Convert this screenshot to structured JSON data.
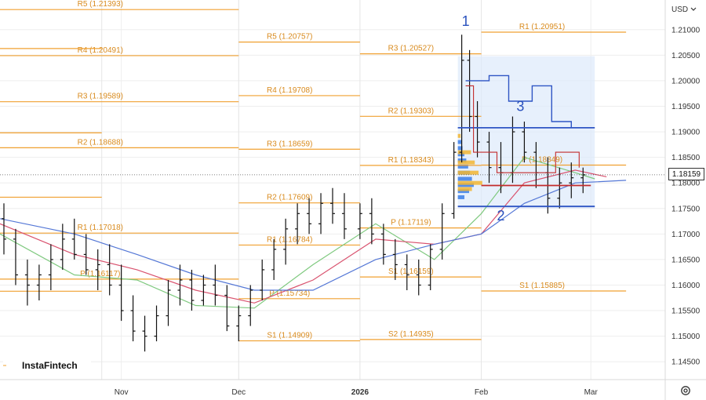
{
  "currency_selector": {
    "label": "USD",
    "icon": "chevron-down-icon"
  },
  "settings": {
    "icon": "gear-icon"
  },
  "watermark": "InstaFintech",
  "last_price": "1.18159",
  "annotations": {
    "wave_1": "1",
    "wave_2": "2",
    "wave_3": "3"
  },
  "colors": {
    "pivot": "#f0a030",
    "pivot_text": "#d98b1e",
    "bars": "#111111",
    "ma_fast": "#7fc97f",
    "ma_mid": "#d9536f",
    "ma_slow": "#5477d6",
    "annotation": "#2a52be",
    "box_fill": "#dde9fb",
    "level_blue": "#2f55c4",
    "level_red": "#c22b2b",
    "profile": "#f2b632",
    "profile_blue": "#3a7ee8"
  },
  "chart_data": {
    "type": "ohlc",
    "instrument_currency": "USD",
    "y_range": [
      1.1415,
      1.2158
    ],
    "y_ticks": [
      "1.21000",
      "1.20500",
      "1.20000",
      "1.19500",
      "1.19000",
      "1.18500",
      "1.18000",
      "1.17500",
      "1.17000",
      "1.16500",
      "1.16000",
      "1.15500",
      "1.15000",
      "1.14500"
    ],
    "x_ticks": [
      {
        "label": "Nov",
        "date": "2025-11-01"
      },
      {
        "label": "Dec",
        "date": "2025-12-01"
      },
      {
        "label": "2026",
        "date": "2026-01-01"
      },
      {
        "label": "Feb",
        "date": "2026-02-01"
      },
      {
        "label": "Mar",
        "date": "2026-03-01"
      }
    ],
    "x_range": [
      "2025-10-01",
      "2026-03-20"
    ],
    "grid": true,
    "current_price": 1.18159,
    "pivot_levels": [
      {
        "label": "R5 (1.21393)",
        "value": 1.21393,
        "from": "2025-10-01",
        "to": "2025-12-01"
      },
      {
        "label": "R4 (1.20491)",
        "value": 1.20491,
        "from": "2025-10-01",
        "to": "2025-12-01"
      },
      {
        "label": "R3 (1.19589)",
        "value": 1.19589,
        "from": "2025-10-01",
        "to": "2025-12-01"
      },
      {
        "label": "R2 (1.18688)",
        "value": 1.18688,
        "from": "2025-10-01",
        "to": "2025-12-01"
      },
      {
        "label": "R1 (1.17018)",
        "value": 1.17018,
        "from": "2025-10-01",
        "to": "2025-12-01"
      },
      {
        "label": "P (1.16117)",
        "value": 1.16117,
        "from": "2025-10-01",
        "to": "2025-12-01"
      },
      {
        "label": "",
        "value": 1.2063,
        "from": "2025-10-01",
        "to": "2025-10-27"
      },
      {
        "label": "",
        "value": 1.1898,
        "from": "2025-10-01",
        "to": "2025-10-27"
      },
      {
        "label": "",
        "value": 1.1772,
        "from": "2025-10-01",
        "to": "2025-10-27"
      },
      {
        "label": "",
        "value": 1.1588,
        "from": "2025-10-01",
        "to": "2025-10-27"
      },
      {
        "label": "R5 (1.20757)",
        "value": 1.20757,
        "from": "2025-12-01",
        "to": "2026-01-01"
      },
      {
        "label": "R4 (1.19708)",
        "value": 1.19708,
        "from": "2025-12-01",
        "to": "2026-01-01"
      },
      {
        "label": "R3 (1.18659)",
        "value": 1.18659,
        "from": "2025-12-01",
        "to": "2026-01-01"
      },
      {
        "label": "R2 (1.17609)",
        "value": 1.17609,
        "from": "2025-12-01",
        "to": "2026-01-01"
      },
      {
        "label": "R1 (1.16784)",
        "value": 1.16784,
        "from": "2025-12-01",
        "to": "2026-01-01"
      },
      {
        "label": "P (1.15734)",
        "value": 1.15734,
        "from": "2025-12-01",
        "to": "2026-01-01"
      },
      {
        "label": "S1 (1.14909)",
        "value": 1.14909,
        "from": "2025-12-01",
        "to": "2026-01-01"
      },
      {
        "label": "R3 (1.20527)",
        "value": 1.20527,
        "from": "2026-01-01",
        "to": "2026-02-01"
      },
      {
        "label": "R2 (1.19303)",
        "value": 1.19303,
        "from": "2026-01-01",
        "to": "2026-02-01"
      },
      {
        "label": "R1 (1.18343)",
        "value": 1.18343,
        "from": "2026-01-01",
        "to": "2026-02-01"
      },
      {
        "label": "P (1.17119)",
        "value": 1.17119,
        "from": "2026-01-01",
        "to": "2026-02-01"
      },
      {
        "label": "S1 (1.16159)",
        "value": 1.16159,
        "from": "2026-01-01",
        "to": "2026-02-01"
      },
      {
        "label": "S2 (1.14935)",
        "value": 1.14935,
        "from": "2026-01-01",
        "to": "2026-02-01"
      },
      {
        "label": "R1 (1.20951)",
        "value": 1.20951,
        "from": "2026-02-01",
        "to": "2026-03-10"
      },
      {
        "label": "P (1.18349)",
        "value": 1.18349,
        "from": "2026-02-01",
        "to": "2026-03-10"
      },
      {
        "label": "S1 (1.15885)",
        "value": 1.15885,
        "from": "2026-02-01",
        "to": "2026-03-10"
      }
    ],
    "bars": [
      [
        "2025-10-02",
        1.173,
        1.176,
        1.166,
        1.169
      ],
      [
        "2025-10-05",
        1.169,
        1.171,
        1.16,
        1.162
      ],
      [
        "2025-10-08",
        1.162,
        1.165,
        1.156,
        1.16
      ],
      [
        "2025-10-11",
        1.16,
        1.164,
        1.157,
        1.162
      ],
      [
        "2025-10-14",
        1.162,
        1.168,
        1.159,
        1.165
      ],
      [
        "2025-10-17",
        1.165,
        1.172,
        1.163,
        1.169
      ],
      [
        "2025-10-20",
        1.169,
        1.173,
        1.165,
        1.166
      ],
      [
        "2025-10-23",
        1.166,
        1.17,
        1.162,
        1.163
      ],
      [
        "2025-10-26",
        1.163,
        1.167,
        1.159,
        1.164
      ],
      [
        "2025-10-29",
        1.164,
        1.168,
        1.158,
        1.16
      ],
      [
        "2025-11-01",
        1.16,
        1.164,
        1.153,
        1.155
      ],
      [
        "2025-11-04",
        1.155,
        1.158,
        1.149,
        1.151
      ],
      [
        "2025-11-07",
        1.151,
        1.154,
        1.147,
        1.15
      ],
      [
        "2025-11-10",
        1.15,
        1.156,
        1.149,
        1.154
      ],
      [
        "2025-11-13",
        1.154,
        1.161,
        1.152,
        1.159
      ],
      [
        "2025-11-16",
        1.159,
        1.164,
        1.156,
        1.161
      ],
      [
        "2025-11-19",
        1.161,
        1.163,
        1.155,
        1.157
      ],
      [
        "2025-11-22",
        1.157,
        1.162,
        1.156,
        1.16
      ],
      [
        "2025-11-25",
        1.16,
        1.164,
        1.156,
        1.158
      ],
      [
        "2025-11-28",
        1.158,
        1.16,
        1.151,
        1.152
      ],
      [
        "2025-12-01",
        1.152,
        1.156,
        1.149,
        1.154
      ],
      [
        "2025-12-04",
        1.154,
        1.16,
        1.152,
        1.159
      ],
      [
        "2025-12-07",
        1.159,
        1.165,
        1.157,
        1.163
      ],
      [
        "2025-12-10",
        1.163,
        1.169,
        1.161,
        1.167
      ],
      [
        "2025-12-13",
        1.167,
        1.173,
        1.164,
        1.171
      ],
      [
        "2025-12-16",
        1.171,
        1.176,
        1.168,
        1.174
      ],
      [
        "2025-12-19",
        1.174,
        1.177,
        1.17,
        1.172
      ],
      [
        "2025-12-22",
        1.172,
        1.178,
        1.17,
        1.176
      ],
      [
        "2025-12-25",
        1.176,
        1.179,
        1.172,
        1.174
      ],
      [
        "2025-12-28",
        1.174,
        1.178,
        1.169,
        1.171
      ],
      [
        "2026-01-01",
        1.171,
        1.176,
        1.169,
        1.174
      ],
      [
        "2026-01-04",
        1.174,
        1.177,
        1.168,
        1.17
      ],
      [
        "2026-01-07",
        1.17,
        1.172,
        1.164,
        1.166
      ],
      [
        "2026-01-10",
        1.166,
        1.169,
        1.161,
        1.164
      ],
      [
        "2026-01-13",
        1.164,
        1.166,
        1.159,
        1.162
      ],
      [
        "2026-01-16",
        1.162,
        1.165,
        1.158,
        1.16
      ],
      [
        "2026-01-19",
        1.16,
        1.168,
        1.159,
        1.167
      ],
      [
        "2026-01-22",
        1.167,
        1.176,
        1.165,
        1.174
      ],
      [
        "2026-01-25",
        1.174,
        1.188,
        1.173,
        1.186
      ],
      [
        "2026-01-27",
        1.186,
        1.209,
        1.184,
        1.204
      ],
      [
        "2026-01-29",
        1.204,
        1.206,
        1.19,
        1.193
      ],
      [
        "2026-01-31",
        1.193,
        1.196,
        1.185,
        1.188
      ],
      [
        "2026-02-03",
        1.188,
        1.19,
        1.18,
        1.183
      ],
      [
        "2026-02-06",
        1.183,
        1.188,
        1.178,
        1.182
      ],
      [
        "2026-02-09",
        1.182,
        1.193,
        1.18,
        1.19
      ],
      [
        "2026-02-12",
        1.19,
        1.192,
        1.184,
        1.186
      ],
      [
        "2026-02-15",
        1.186,
        1.188,
        1.179,
        1.182
      ],
      [
        "2026-02-18",
        1.182,
        1.185,
        1.174,
        1.177
      ],
      [
        "2026-02-21",
        1.177,
        1.183,
        1.175,
        1.18
      ],
      [
        "2026-02-24",
        1.18,
        1.184,
        1.177,
        1.181
      ],
      [
        "2026-02-27",
        1.181,
        1.183,
        1.178,
        1.1816
      ]
    ],
    "moving_averages": [
      {
        "color_key": "ma_fast",
        "points": [
          [
            "2025-10-01",
            1.17
          ],
          [
            "2025-10-20",
            1.162
          ],
          [
            "2025-11-05",
            1.161
          ],
          [
            "2025-11-20",
            1.156
          ],
          [
            "2025-12-05",
            1.1555
          ],
          [
            "2025-12-20",
            1.164
          ],
          [
            "2026-01-05",
            1.172
          ],
          [
            "2026-01-20",
            1.165
          ],
          [
            "2026-02-01",
            1.174
          ],
          [
            "2026-02-12",
            1.185
          ],
          [
            "2026-02-25",
            1.182
          ],
          [
            "2026-03-02",
            1.1808
          ]
        ]
      },
      {
        "color_key": "ma_mid",
        "points": [
          [
            "2025-10-01",
            1.172
          ],
          [
            "2025-10-20",
            1.166
          ],
          [
            "2025-11-05",
            1.163
          ],
          [
            "2025-11-20",
            1.159
          ],
          [
            "2025-12-05",
            1.1565
          ],
          [
            "2025-12-20",
            1.161
          ],
          [
            "2026-01-05",
            1.169
          ],
          [
            "2026-01-20",
            1.168
          ],
          [
            "2026-02-01",
            1.17
          ],
          [
            "2026-02-12",
            1.18
          ],
          [
            "2026-02-25",
            1.1825
          ],
          [
            "2026-03-05",
            1.1812
          ]
        ]
      },
      {
        "color_key": "ma_slow",
        "points": [
          [
            "2025-10-01",
            1.173
          ],
          [
            "2025-10-20",
            1.17
          ],
          [
            "2025-11-05",
            1.166
          ],
          [
            "2025-11-20",
            1.162
          ],
          [
            "2025-12-05",
            1.159
          ],
          [
            "2025-12-20",
            1.159
          ],
          [
            "2026-01-05",
            1.165
          ],
          [
            "2026-01-20",
            1.168
          ],
          [
            "2026-02-01",
            1.17
          ],
          [
            "2026-02-12",
            1.176
          ],
          [
            "2026-02-25",
            1.18
          ],
          [
            "2026-03-10",
            1.1805
          ]
        ]
      }
    ],
    "box": {
      "from": "2026-01-26",
      "to": "2026-03-02",
      "top": 1.2048,
      "bottom": 1.175
    },
    "horizontal_levels": [
      {
        "color_key": "level_blue",
        "value": 1.1908,
        "from": "2026-01-26",
        "to": "2026-03-02"
      },
      {
        "color_key": "level_blue",
        "value": 1.1754,
        "from": "2026-01-26",
        "to": "2026-03-02"
      },
      {
        "color_key": "level_red",
        "value": 1.1795,
        "from": "2026-02-01",
        "to": "2026-03-01"
      }
    ]
  }
}
